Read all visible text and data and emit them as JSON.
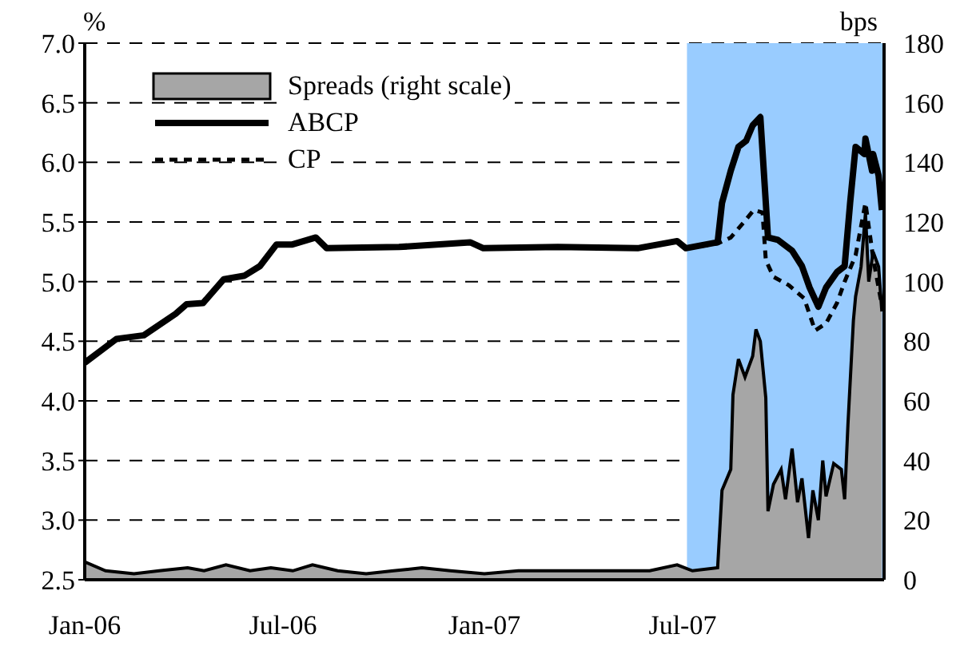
{
  "chart_data": {
    "type": "line",
    "ylabel": "%",
    "y2label": "bps",
    "xlim": [
      "2006-01-01",
      "2008-01-01"
    ],
    "xticks": [
      {
        "value": "2006-01-01",
        "label": "Jan-06"
      },
      {
        "value": "2006-07-01",
        "label": "Jul-06"
      },
      {
        "value": "2007-01-01",
        "label": "Jan-07"
      },
      {
        "value": "2007-07-01",
        "label": "Jul-07"
      }
    ],
    "ylim": [
      2.5,
      7
    ],
    "yticks": [
      2.5,
      {
        "value": 3,
        "label": "3.0"
      },
      3.5,
      {
        "value": 4,
        "label": "4.0"
      },
      4.5,
      {
        "value": 5,
        "label": "5.0"
      },
      5.5,
      {
        "value": 6,
        "label": "6.0"
      },
      6.5,
      {
        "value": 7,
        "label": "7.0"
      }
    ],
    "y2lim": [
      0,
      180
    ],
    "y2ticks": [
      0,
      20,
      40,
      60,
      80,
      100,
      120,
      140,
      160,
      180
    ],
    "grid": "y",
    "legend": "top left",
    "marker": "none",
    "bands": [
      {
        "axis": "x",
        "from": "2007-07-05",
        "to": "2008-01-01",
        "color": "#99ccff"
      }
    ],
    "series": [
      {
        "name": "Spreads (right scale)",
        "type": "area",
        "axis": "y2",
        "color": "#a6a6a6",
        "x": [
          "2006-01-01",
          "2006-01-20",
          "2006-02-15",
          "2006-03-10",
          "2006-04-05",
          "2006-04-20",
          "2006-05-10",
          "2006-06-01",
          "2006-06-20",
          "2006-07-10",
          "2006-07-28",
          "2006-08-20",
          "2006-09-15",
          "2006-10-10",
          "2006-11-05",
          "2006-12-01",
          "2007-01-01",
          "2007-02-01",
          "2007-03-01",
          "2007-04-01",
          "2007-05-01",
          "2007-06-01",
          "2007-06-26",
          "2007-07-10",
          "2007-08-02",
          "2007-08-06",
          "2007-08-14",
          "2007-08-16",
          "2007-08-21",
          "2007-08-27",
          "2007-09-03",
          "2007-09-06",
          "2007-09-10",
          "2007-09-15",
          "2007-09-17",
          "2007-09-22",
          "2007-09-29",
          "2007-10-03",
          "2007-10-09",
          "2007-10-14",
          "2007-10-18",
          "2007-10-24",
          "2007-10-28",
          "2007-11-02",
          "2007-11-06",
          "2007-11-09",
          "2007-11-16",
          "2007-11-23",
          "2007-11-26",
          "2007-11-29",
          "2007-12-04",
          "2007-12-06",
          "2007-12-11",
          "2007-12-15",
          "2007-12-18",
          "2007-12-22",
          "2007-12-27",
          "2007-12-30"
        ],
        "values": [
          6,
          3,
          2,
          3,
          4,
          3,
          5,
          3,
          4,
          3,
          5,
          3,
          2,
          3,
          4,
          3,
          2,
          3,
          3,
          3,
          3,
          3,
          5,
          3,
          4,
          30,
          37,
          62,
          74,
          68,
          75,
          84,
          80,
          61,
          23,
          32,
          37,
          27,
          44,
          26,
          34,
          14,
          30,
          20,
          40,
          28,
          39,
          37,
          27,
          52,
          87,
          95,
          105,
          123,
          100,
          110,
          105,
          90
        ]
      },
      {
        "name": "ABCP",
        "color": "#000000",
        "line_style": "solid",
        "x": [
          "2006-01-01",
          "2006-01-30",
          "2006-02-24",
          "2006-03-25",
          "2006-04-04",
          "2006-04-19",
          "2006-05-08",
          "2006-05-27",
          "2006-06-10",
          "2006-06-25",
          "2006-07-09",
          "2006-07-31",
          "2006-08-10",
          "2006-10-15",
          "2006-12-19",
          "2006-12-31",
          "2007-03-09",
          "2007-05-21",
          "2007-06-26",
          "2007-07-04",
          "2007-08-02",
          "2007-08-06",
          "2007-08-14",
          "2007-08-21",
          "2007-08-28",
          "2007-09-03",
          "2007-09-10",
          "2007-09-15",
          "2007-09-17",
          "2007-09-26",
          "2007-10-09",
          "2007-10-18",
          "2007-10-25",
          "2007-11-02",
          "2007-11-09",
          "2007-11-19",
          "2007-11-26",
          "2007-12-01",
          "2007-12-06",
          "2007-12-14",
          "2007-12-15",
          "2007-12-21",
          "2007-12-22",
          "2007-12-27",
          "2007-12-30"
        ],
        "values": [
          4.32,
          4.52,
          4.55,
          4.73,
          4.81,
          4.82,
          5.02,
          5.05,
          5.13,
          5.31,
          5.31,
          5.37,
          5.28,
          5.29,
          5.33,
          5.28,
          5.29,
          5.28,
          5.34,
          5.28,
          5.33,
          5.66,
          5.93,
          6.13,
          6.18,
          6.31,
          6.38,
          5.66,
          5.37,
          5.35,
          5.26,
          5.13,
          4.95,
          4.79,
          4.95,
          5.08,
          5.13,
          5.66,
          6.13,
          6.07,
          6.2,
          5.93,
          6.07,
          5.89,
          5.6
        ]
      },
      {
        "name": "CP",
        "color": "#000000",
        "line_style": "dashed",
        "x": [
          "2007-07-04",
          "2007-08-02",
          "2007-08-14",
          "2007-08-27",
          "2007-09-04",
          "2007-09-12",
          "2007-09-15",
          "2007-09-22",
          "2007-10-06",
          "2007-10-20",
          "2007-10-30",
          "2007-11-09",
          "2007-11-19",
          "2007-11-26",
          "2007-12-06",
          "2007-12-15",
          "2007-12-22",
          "2007-12-30"
        ],
        "values": [
          5.28,
          5.32,
          5.37,
          5.51,
          5.6,
          5.58,
          5.18,
          5.04,
          4.97,
          4.86,
          4.59,
          4.65,
          4.82,
          5.0,
          5.22,
          5.66,
          5.2,
          4.8
        ]
      }
    ]
  }
}
